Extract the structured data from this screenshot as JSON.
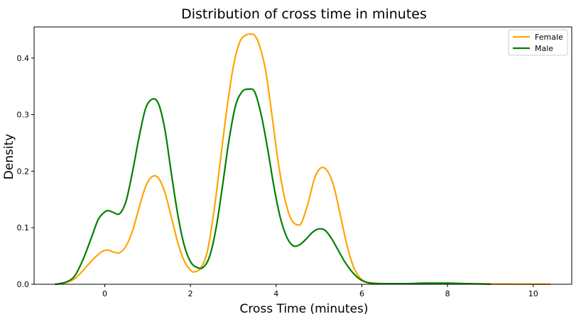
{
  "chart_data": {
    "type": "line",
    "title": "Distribution of cross time in minutes",
    "xlabel": "Cross Time (minutes)",
    "ylabel": "Density",
    "xlim": [
      -1.65,
      10.9
    ],
    "ylim": [
      0,
      0.455
    ],
    "xticks": [
      0,
      2,
      4,
      6,
      8,
      10
    ],
    "yticks": [
      0.0,
      0.1,
      0.2,
      0.3,
      0.4
    ],
    "ytick_labels": [
      "0.0",
      "0.1",
      "0.2",
      "0.3",
      "0.4"
    ],
    "grid": false,
    "legend_position": "top-right",
    "series": [
      {
        "name": "Female",
        "color": "#ffa500",
        "x": [
          -1.15,
          -0.9,
          -0.7,
          -0.5,
          -0.3,
          -0.1,
          0.0,
          0.1,
          0.2,
          0.35,
          0.5,
          0.65,
          0.8,
          0.95,
          1.1,
          1.25,
          1.4,
          1.55,
          1.7,
          1.85,
          2.0,
          2.1,
          2.25,
          2.4,
          2.55,
          2.7,
          2.85,
          3.0,
          3.15,
          3.3,
          3.45,
          3.5,
          3.6,
          3.75,
          3.9,
          4.05,
          4.2,
          4.35,
          4.5,
          4.6,
          4.75,
          4.9,
          5.05,
          5.2,
          5.35,
          5.5,
          5.65,
          5.8,
          5.95,
          6.1,
          6.3,
          6.5,
          7.0,
          7.5,
          8.0,
          8.5,
          9.0,
          9.5,
          10.0,
          10.4
        ],
        "y": [
          0.0,
          0.003,
          0.01,
          0.025,
          0.042,
          0.056,
          0.06,
          0.06,
          0.057,
          0.056,
          0.068,
          0.095,
          0.135,
          0.172,
          0.19,
          0.188,
          0.163,
          0.12,
          0.075,
          0.042,
          0.025,
          0.022,
          0.03,
          0.06,
          0.13,
          0.22,
          0.31,
          0.385,
          0.428,
          0.441,
          0.442,
          0.44,
          0.425,
          0.38,
          0.3,
          0.215,
          0.152,
          0.115,
          0.105,
          0.11,
          0.145,
          0.188,
          0.206,
          0.2,
          0.172,
          0.122,
          0.07,
          0.032,
          0.012,
          0.004,
          0.002,
          0.001,
          0.001,
          0.001,
          0.001,
          0.001,
          0.0005,
          0.0003,
          0.0002,
          0.0001
        ]
      },
      {
        "name": "Male",
        "color": "#008000",
        "x": [
          -1.15,
          -0.9,
          -0.7,
          -0.5,
          -0.3,
          -0.15,
          0.0,
          0.1,
          0.2,
          0.35,
          0.5,
          0.65,
          0.8,
          0.95,
          1.1,
          1.25,
          1.4,
          1.55,
          1.7,
          1.85,
          2.0,
          2.15,
          2.3,
          2.45,
          2.6,
          2.75,
          2.9,
          3.05,
          3.2,
          3.35,
          3.5,
          3.65,
          3.8,
          3.95,
          4.1,
          4.25,
          4.4,
          4.55,
          4.7,
          4.85,
          5.0,
          5.15,
          5.3,
          5.45,
          5.6,
          5.75,
          5.9,
          6.05,
          6.2,
          6.4,
          6.6,
          7.0,
          7.5,
          8.0,
          8.5,
          9.0
        ],
        "y": [
          0.0,
          0.004,
          0.015,
          0.045,
          0.085,
          0.115,
          0.128,
          0.13,
          0.127,
          0.125,
          0.148,
          0.2,
          0.26,
          0.31,
          0.327,
          0.32,
          0.275,
          0.198,
          0.125,
          0.07,
          0.04,
          0.03,
          0.03,
          0.05,
          0.1,
          0.175,
          0.255,
          0.315,
          0.34,
          0.345,
          0.34,
          0.3,
          0.24,
          0.172,
          0.117,
          0.083,
          0.068,
          0.07,
          0.08,
          0.092,
          0.098,
          0.095,
          0.08,
          0.06,
          0.04,
          0.024,
          0.012,
          0.005,
          0.002,
          0.001,
          0.001,
          0.001,
          0.002,
          0.002,
          0.001,
          0.0003
        ]
      }
    ]
  }
}
